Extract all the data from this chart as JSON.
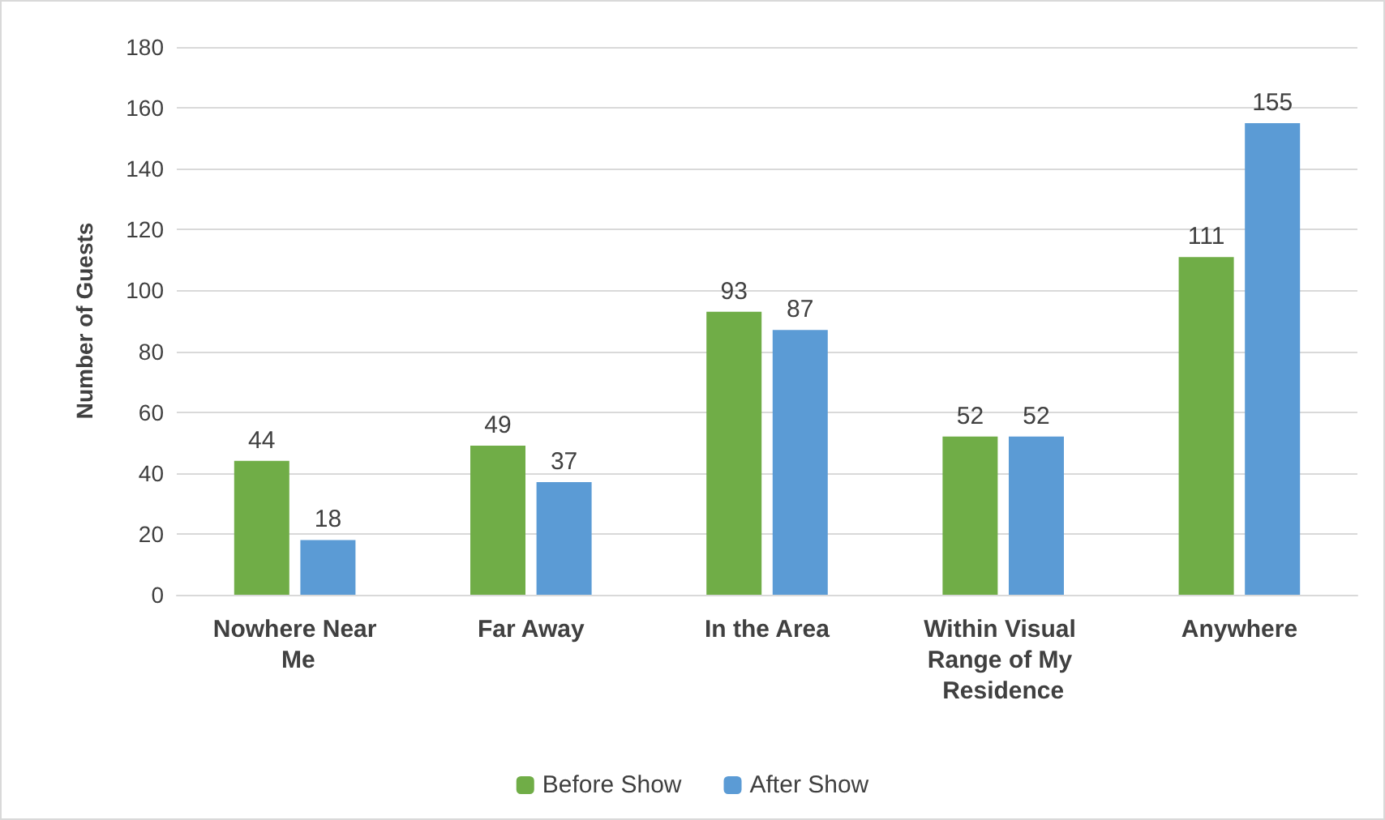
{
  "chart_data": {
    "type": "bar",
    "categories": [
      "Nowhere Near Me",
      "Far Away",
      "In the Area",
      "Within Visual Range of My Residence",
      "Anywhere"
    ],
    "ylabel": "Number of Guests",
    "series": [
      {
        "name": "Before Show",
        "color": "#70ad47",
        "values": [
          44,
          49,
          93,
          52,
          111
        ]
      },
      {
        "name": "After Show",
        "color": "#5b9bd5",
        "values": [
          18,
          37,
          87,
          52,
          155
        ]
      }
    ],
    "ylim": [
      0,
      180
    ],
    "yticks": [
      0,
      20,
      40,
      60,
      80,
      100,
      120,
      140,
      160,
      180
    ],
    "grid": "y",
    "legend": "bottom",
    "data_labels": true
  }
}
